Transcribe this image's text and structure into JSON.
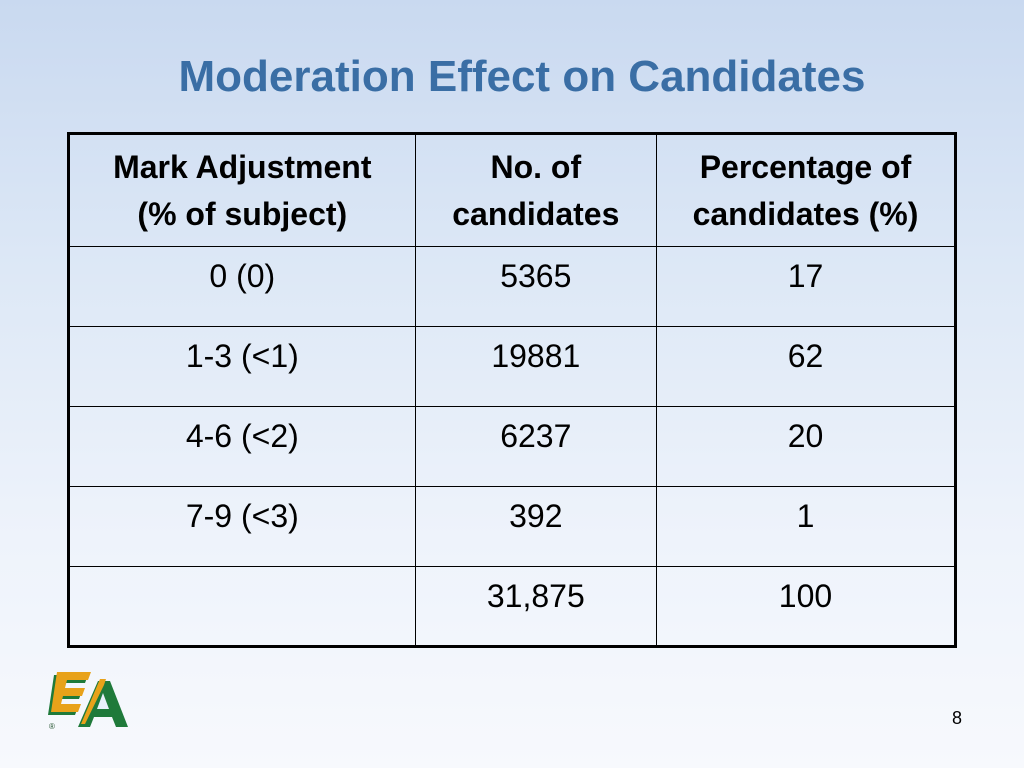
{
  "slide": {
    "title": "Moderation Effect on Candidates",
    "page_number": "8"
  },
  "table": {
    "headers": [
      [
        "Mark Adjustment",
        "(% of subject)"
      ],
      [
        "No. of",
        "candidates"
      ],
      [
        "Percentage of",
        "candidates (%)"
      ]
    ],
    "rows": [
      [
        "0 (0)",
        "5365",
        "17"
      ],
      [
        "1-3 (<1)",
        "19881",
        "62"
      ],
      [
        "4-6 (<2)",
        "6237",
        "20"
      ],
      [
        "7-9 (<3)",
        "392",
        "1"
      ],
      [
        "",
        "31,875",
        "100"
      ]
    ]
  },
  "logo": {
    "text": "EA",
    "mark": "®",
    "colors": {
      "green": "#1f7a3a",
      "gold": "#e8a21a"
    }
  }
}
